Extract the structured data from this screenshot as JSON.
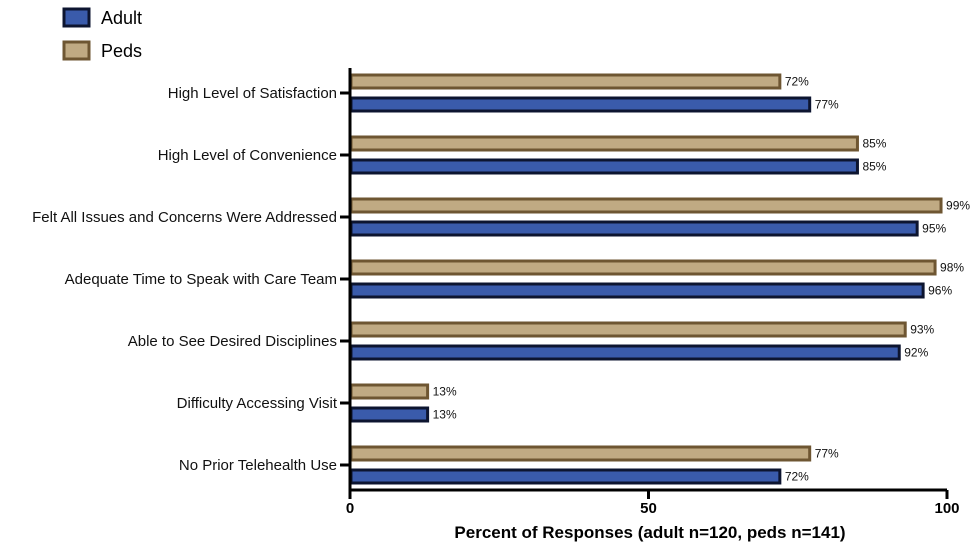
{
  "chart_data": {
    "type": "bar",
    "orientation": "horizontal",
    "categories": [
      "High Level of Satisfaction",
      "High Level of Convenience",
      "Felt All Issues and Concerns Were Addressed",
      "Adequate Time to Speak with Care Team",
      "Able to See Desired Disciplines",
      "Difficulty Accessing Visit",
      "No Prior Telehealth Use"
    ],
    "series": [
      {
        "name": "Peds",
        "values": [
          72,
          85,
          99,
          98,
          93,
          13,
          77
        ],
        "labels": [
          "72%",
          "85%",
          "99%",
          "98%",
          "93%",
          "13%",
          "77%"
        ],
        "fill": "#c0aa83",
        "stroke": "#6e5632"
      },
      {
        "name": "Adult",
        "values": [
          77,
          85,
          95,
          96,
          92,
          13,
          72
        ],
        "labels": [
          "77%",
          "85%",
          "95%",
          "96%",
          "92%",
          "13%",
          "72%"
        ],
        "fill": "#3a5bab",
        "stroke": "#0d1530"
      }
    ],
    "legend": [
      {
        "label": "Adult",
        "fill": "#3a5bab",
        "stroke": "#0d1530"
      },
      {
        "label": "Peds",
        "fill": "#c0aa83",
        "stroke": "#6e5632"
      }
    ],
    "legend_position": "top-left",
    "xlabel": "Percent of Responses (adult n=120, peds n=141)",
    "xlim": [
      0,
      100
    ],
    "xticks": [
      0,
      50,
      100
    ],
    "xtick_labels": [
      "0",
      "50",
      "100"
    ],
    "grid": false
  }
}
